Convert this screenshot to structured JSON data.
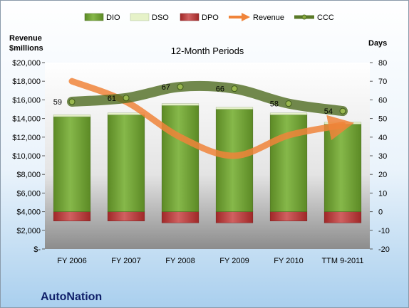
{
  "company": "AutoNation",
  "chart_data": {
    "type": "bar",
    "title": "12-Month Periods",
    "ylabel_left": [
      "Revenue",
      "$millions"
    ],
    "ylabel_right": "Days",
    "categories": [
      "FY 2006",
      "FY 2007",
      "FY 2008",
      "FY 2009",
      "FY 2010",
      "TTM 9-2011"
    ],
    "left_axis": {
      "ylim": [
        0,
        20000
      ],
      "ticks": [
        "$-",
        "$2,000",
        "$4,000",
        "$6,000",
        "$8,000",
        "$10,000",
        "$12,000",
        "$14,000",
        "$16,000",
        "$18,000",
        "$20,000"
      ]
    },
    "right_axis": {
      "ylim": [
        -20,
        80
      ],
      "ticks": [
        "-20",
        "-10",
        "0",
        "10",
        "20",
        "30",
        "40",
        "50",
        "60",
        "70",
        "80"
      ]
    },
    "stacking": "stacked bars on right axis",
    "series": [
      {
        "name": "DIO",
        "type": "bar",
        "axis": "right",
        "color": "#77a33a",
        "values": [
          51,
          52,
          57,
          55,
          52,
          47
        ]
      },
      {
        "name": "DSO",
        "type": "bar",
        "axis": "right",
        "color": "#e6f2c8",
        "values": [
          1,
          1,
          1,
          1,
          1,
          1
        ]
      },
      {
        "name": "DPO",
        "type": "bar",
        "axis": "right",
        "color": "#b83a3a",
        "values": [
          -5,
          -5,
          -6,
          -6,
          -5,
          -6
        ]
      },
      {
        "name": "Revenue",
        "type": "line",
        "axis": "left",
        "color": "#f0843a",
        "values": [
          18000,
          15800,
          12000,
          10000,
          12200,
          13300
        ]
      },
      {
        "name": "CCC",
        "type": "line",
        "axis": "right",
        "color": "#5a7a28",
        "values": [
          59,
          61,
          67,
          66,
          58,
          54
        ],
        "labels": [
          "59",
          "61",
          "67",
          "66",
          "58",
          "54"
        ]
      }
    ],
    "legend": "top",
    "grid": false
  }
}
